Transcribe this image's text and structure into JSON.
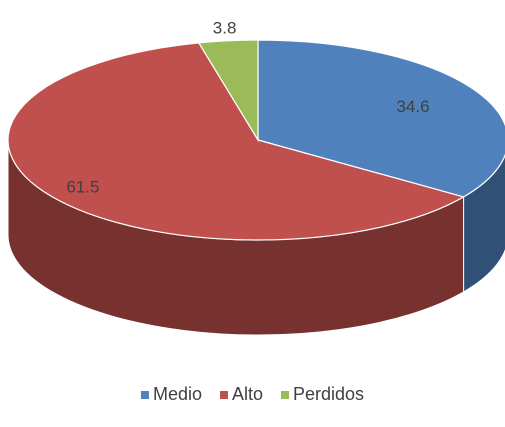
{
  "chart_data": {
    "type": "pie3d",
    "categories": [
      "Medio",
      "Alto",
      "Perdidos"
    ],
    "values": [
      34.6,
      61.5,
      3.8
    ],
    "colors": [
      "#4f81bd",
      "#c0504d",
      "#9bbb59"
    ],
    "legend": "bottom"
  }
}
